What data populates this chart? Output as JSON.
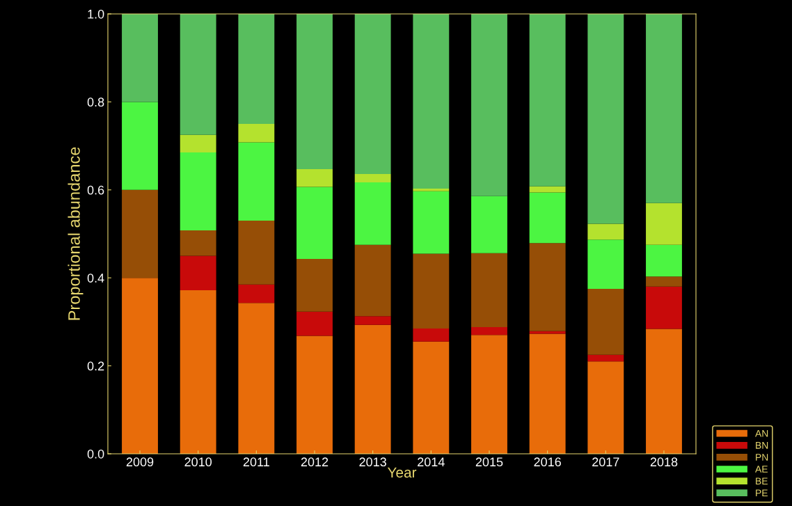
{
  "chart_data": {
    "type": "bar",
    "stacked": true,
    "xlabel": "Year",
    "ylabel": "Proportional abundance",
    "categories": [
      "2009",
      "2010",
      "2011",
      "2012",
      "2013",
      "2014",
      "2015",
      "2016",
      "2017",
      "2018"
    ],
    "series": [
      {
        "name": "AN",
        "color": "#e86c0a",
        "values": [
          0.4,
          0.372,
          0.343,
          0.268,
          0.293,
          0.255,
          0.27,
          0.273,
          0.21,
          0.284
        ]
      },
      {
        "name": "BN",
        "color": "#c80a0a",
        "values": [
          0,
          0.078,
          0.042,
          0.055,
          0.02,
          0.03,
          0.018,
          0.006,
          0.015,
          0.096
        ]
      },
      {
        "name": "PN",
        "color": "#964e06",
        "values": [
          0.2,
          0.058,
          0.145,
          0.12,
          0.162,
          0.17,
          0.168,
          0.2,
          0.15,
          0.023
        ]
      },
      {
        "name": "AE",
        "color": "#4cf542",
        "values": [
          0.2,
          0.177,
          0.178,
          0.164,
          0.142,
          0.142,
          0.13,
          0.115,
          0.112,
          0.072
        ]
      },
      {
        "name": "BE",
        "color": "#b4e22e",
        "values": [
          0,
          0.04,
          0.042,
          0.04,
          0.019,
          0.006,
          0,
          0.014,
          0.036,
          0.095
        ]
      },
      {
        "name": "PE",
        "color": "#58be5e",
        "values": [
          0.2,
          0.275,
          0.25,
          0.353,
          0.364,
          0.397,
          0.414,
          0.392,
          0.477,
          0.43
        ]
      }
    ],
    "ylim": [
      0,
      1.0
    ],
    "yticks": [
      {
        "value": 0,
        "label": "0.0"
      },
      {
        "value": 0.2,
        "label": "0.2"
      },
      {
        "value": 0.4,
        "label": "0.4"
      },
      {
        "value": 0.6,
        "label": "0.6"
      },
      {
        "value": 0.8,
        "label": "0.8"
      },
      {
        "value": 1.0,
        "label": "1.0"
      }
    ],
    "legend": "bottom right",
    "grid": false
  }
}
